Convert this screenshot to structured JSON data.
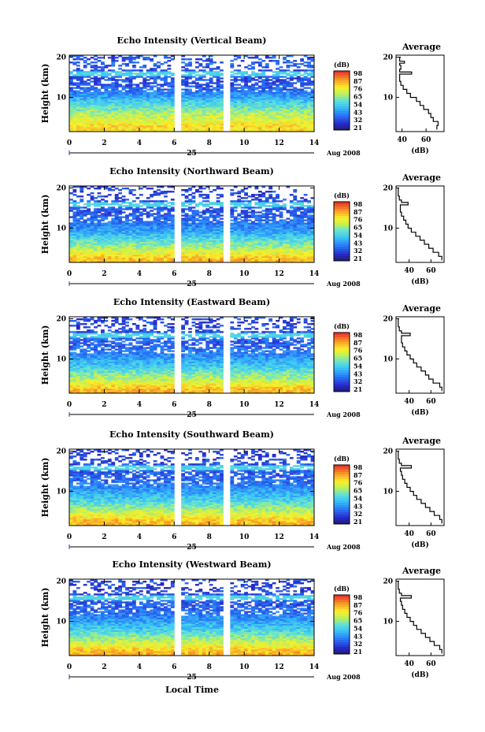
{
  "footer": {
    "xlabel": "Local Time"
  },
  "chart_data": [
    {
      "type": "heatmap",
      "title": "Echo Intensity (Vertical Beam)",
      "ylabel": "Height (km)",
      "x_ticks": [
        "0",
        "2",
        "4",
        "6",
        "8",
        "10",
        "12",
        "14"
      ],
      "y_ticks": [
        "10",
        "20"
      ],
      "xlim": [
        0,
        14
      ],
      "ylim": [
        1.5,
        20.5
      ],
      "date_label": "25",
      "date_suffix": "Aug 2008",
      "data_gaps": [
        [
          6.0,
          6.3
        ],
        [
          8.9,
          9.2
        ]
      ],
      "colorbar": {
        "label": "(dB)",
        "ticks": [
          "98",
          "87",
          "76",
          "65",
          "54",
          "43",
          "32",
          "21"
        ],
        "range": [
          21,
          98
        ]
      },
      "average": {
        "title": "Average",
        "xlabel": "(dB)",
        "x_ticks": [
          "40",
          "60"
        ],
        "y_ticks": [
          "10",
          "20"
        ],
        "xlim": [
          35,
          75
        ],
        "profile": [
          [
            2,
            69
          ],
          [
            3,
            70
          ],
          [
            4,
            66
          ],
          [
            5,
            64
          ],
          [
            6,
            62
          ],
          [
            7,
            58
          ],
          [
            8,
            55
          ],
          [
            9,
            52
          ],
          [
            10,
            47
          ],
          [
            11,
            44
          ],
          [
            12,
            41
          ],
          [
            13,
            39
          ],
          [
            14,
            38
          ],
          [
            15,
            38
          ],
          [
            15.8,
            48
          ],
          [
            16.3,
            38
          ],
          [
            17,
            39
          ],
          [
            18,
            38
          ],
          [
            18.5,
            42
          ],
          [
            19,
            38
          ],
          [
            20,
            39
          ]
        ]
      }
    },
    {
      "type": "heatmap",
      "title": "Echo Intensity (Northward Beam)",
      "ylabel": "Height (km)",
      "x_ticks": [
        "0",
        "2",
        "4",
        "6",
        "8",
        "10",
        "12",
        "14"
      ],
      "y_ticks": [
        "10",
        "20"
      ],
      "xlim": [
        0,
        14
      ],
      "ylim": [
        1.5,
        20.5
      ],
      "date_label": "25",
      "date_suffix": "Aug 2008",
      "data_gaps": [
        [
          6.0,
          6.3
        ],
        [
          8.9,
          9.2
        ]
      ],
      "colorbar": {
        "label": "(dB)",
        "ticks": [
          "98",
          "87",
          "76",
          "65",
          "54",
          "43",
          "32",
          "21"
        ],
        "range": [
          21,
          98
        ]
      },
      "average": {
        "title": "Average",
        "xlabel": "(dB)",
        "x_ticks": [
          "40",
          "60"
        ],
        "y_ticks": [
          "10",
          "20"
        ],
        "xlim": [
          28,
          72
        ],
        "profile": [
          [
            2,
            70
          ],
          [
            3,
            67
          ],
          [
            4,
            62
          ],
          [
            5,
            58
          ],
          [
            6,
            54
          ],
          [
            7,
            50
          ],
          [
            8,
            46
          ],
          [
            9,
            42
          ],
          [
            10,
            39
          ],
          [
            11,
            37
          ],
          [
            12,
            35
          ],
          [
            13,
            33
          ],
          [
            14,
            32
          ],
          [
            15,
            32
          ],
          [
            15.8,
            39
          ],
          [
            16.4,
            33
          ],
          [
            17,
            31
          ],
          [
            18,
            30
          ],
          [
            19,
            30
          ],
          [
            20,
            30
          ]
        ]
      }
    },
    {
      "type": "heatmap",
      "title": "Echo Intensity (Eastward Beam)",
      "ylabel": "Height (km)",
      "x_ticks": [
        "0",
        "2",
        "4",
        "6",
        "8",
        "10",
        "12",
        "14"
      ],
      "y_ticks": [
        "10",
        "20"
      ],
      "xlim": [
        0,
        14
      ],
      "ylim": [
        1.5,
        20.5
      ],
      "date_label": "25",
      "date_suffix": "Aug 2008",
      "data_gaps": [
        [
          6.0,
          6.3
        ],
        [
          8.9,
          9.2
        ]
      ],
      "colorbar": {
        "label": "(dB)",
        "ticks": [
          "98",
          "87",
          "76",
          "65",
          "54",
          "43",
          "32",
          "21"
        ],
        "range": [
          21,
          98
        ]
      },
      "average": {
        "title": "Average",
        "xlabel": "(dB)",
        "x_ticks": [
          "40",
          "60"
        ],
        "y_ticks": [
          "10",
          "20"
        ],
        "xlim": [
          28,
          72
        ],
        "profile": [
          [
            2,
            70
          ],
          [
            3,
            68
          ],
          [
            4,
            62
          ],
          [
            5,
            58
          ],
          [
            6,
            55
          ],
          [
            7,
            51
          ],
          [
            8,
            47
          ],
          [
            9,
            44
          ],
          [
            10,
            41
          ],
          [
            11,
            38
          ],
          [
            12,
            36
          ],
          [
            13,
            34
          ],
          [
            14,
            33
          ],
          [
            15,
            33
          ],
          [
            15.8,
            41
          ],
          [
            16.4,
            33
          ],
          [
            17,
            31
          ],
          [
            18,
            30
          ],
          [
            19,
            30
          ],
          [
            20,
            30
          ]
        ]
      }
    },
    {
      "type": "heatmap",
      "title": "Echo Intensity (Southward Beam)",
      "ylabel": "Height (km)",
      "x_ticks": [
        "0",
        "2",
        "4",
        "6",
        "8",
        "10",
        "12",
        "14"
      ],
      "y_ticks": [
        "10",
        "20"
      ],
      "xlim": [
        0,
        14
      ],
      "ylim": [
        1.5,
        20.5
      ],
      "date_label": "25",
      "date_suffix": "Aug 2008",
      "data_gaps": [
        [
          6.0,
          6.3
        ],
        [
          8.9,
          9.2
        ]
      ],
      "colorbar": {
        "label": "(dB)",
        "ticks": [
          "98",
          "87",
          "76",
          "65",
          "54",
          "43",
          "32",
          "21"
        ],
        "range": [
          21,
          98
        ]
      },
      "average": {
        "title": "Average",
        "xlabel": "(dB)",
        "x_ticks": [
          "40",
          "60"
        ],
        "y_ticks": [
          "10",
          "20"
        ],
        "xlim": [
          28,
          72
        ],
        "profile": [
          [
            2,
            70
          ],
          [
            3,
            68
          ],
          [
            4,
            63
          ],
          [
            5,
            59
          ],
          [
            6,
            55
          ],
          [
            7,
            51
          ],
          [
            8,
            47
          ],
          [
            9,
            44
          ],
          [
            10,
            41
          ],
          [
            11,
            38
          ],
          [
            12,
            36
          ],
          [
            13,
            34
          ],
          [
            14,
            33
          ],
          [
            15,
            32
          ],
          [
            15.8,
            42
          ],
          [
            16.4,
            33
          ],
          [
            17,
            31
          ],
          [
            18,
            30
          ],
          [
            19,
            30
          ],
          [
            20,
            30
          ]
        ]
      }
    },
    {
      "type": "heatmap",
      "title": "Echo Intensity (Westward Beam)",
      "ylabel": "Height (km)",
      "x_ticks": [
        "0",
        "2",
        "4",
        "6",
        "8",
        "10",
        "12",
        "14"
      ],
      "y_ticks": [
        "10",
        "20"
      ],
      "xlim": [
        0,
        14
      ],
      "ylim": [
        1.5,
        20.5
      ],
      "date_label": "25",
      "date_suffix": "Aug 2008",
      "data_gaps": [
        [
          6.0,
          6.3
        ],
        [
          8.9,
          9.2
        ]
      ],
      "colorbar": {
        "label": "(dB)",
        "ticks": [
          "98",
          "87",
          "76",
          "65",
          "54",
          "43",
          "32",
          "21"
        ],
        "range": [
          21,
          98
        ]
      },
      "average": {
        "title": "Average",
        "xlabel": "(dB)",
        "x_ticks": [
          "40",
          "60"
        ],
        "y_ticks": [
          "10",
          "20"
        ],
        "xlim": [
          28,
          72
        ],
        "profile": [
          [
            2,
            70
          ],
          [
            3,
            68
          ],
          [
            4,
            63
          ],
          [
            5,
            59
          ],
          [
            6,
            55
          ],
          [
            7,
            51
          ],
          [
            8,
            47
          ],
          [
            9,
            44
          ],
          [
            10,
            41
          ],
          [
            11,
            38
          ],
          [
            12,
            36
          ],
          [
            13,
            34
          ],
          [
            14,
            33
          ],
          [
            15,
            32
          ],
          [
            15.8,
            42
          ],
          [
            16.4,
            33
          ],
          [
            17,
            31
          ],
          [
            18,
            30
          ],
          [
            19,
            30
          ],
          [
            20,
            30
          ]
        ]
      }
    }
  ]
}
